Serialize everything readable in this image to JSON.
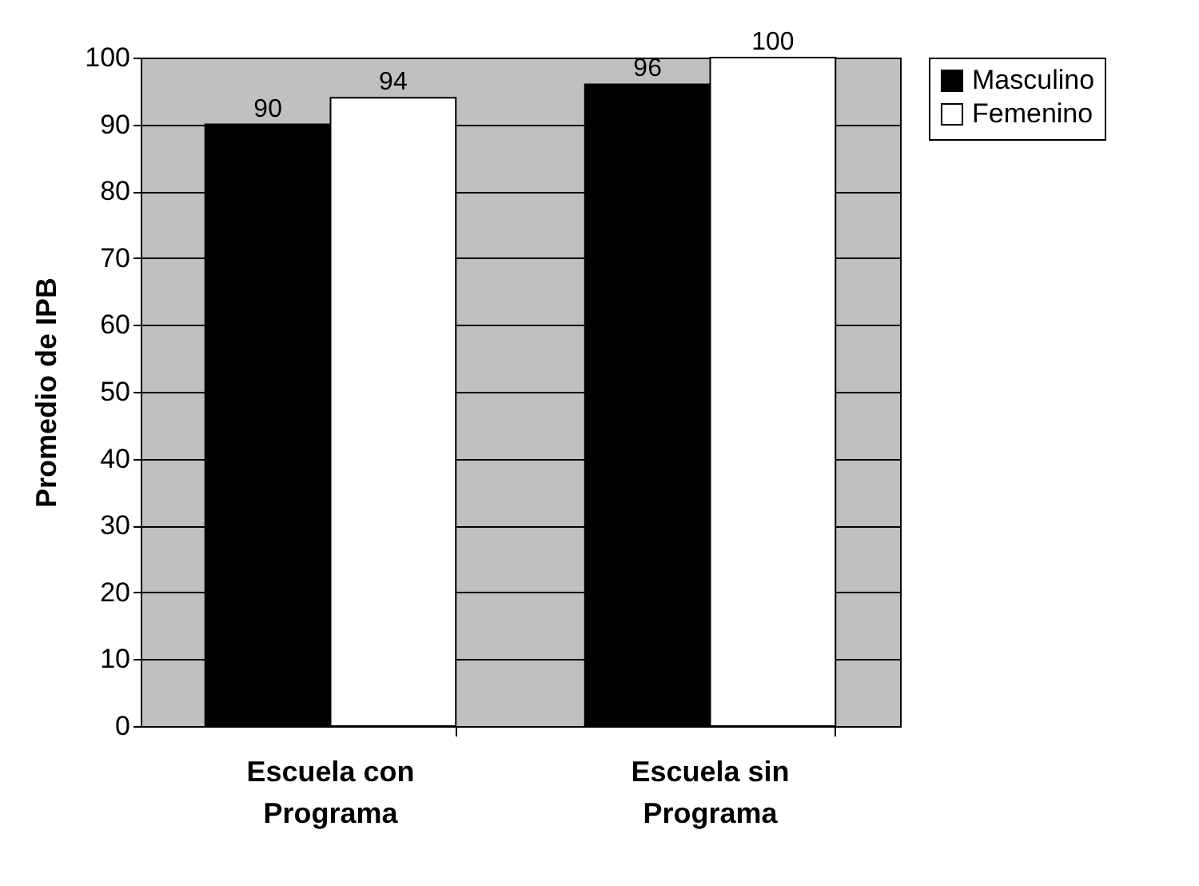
{
  "chart_data": {
    "type": "bar",
    "ylabel": "Promedio de IPB",
    "categories": [
      "Escuela con Programa",
      "Escuela sin Programa"
    ],
    "series": [
      {
        "name": "Masculino",
        "color": "#000000",
        "values": [
          90,
          96
        ]
      },
      {
        "name": "Femenino",
        "color": "#ffffff",
        "values": [
          94,
          100
        ]
      }
    ],
    "ylim": [
      0,
      100
    ],
    "yticks": [
      0,
      10,
      20,
      30,
      40,
      50,
      60,
      70,
      80,
      90,
      100
    ],
    "grid": "y",
    "legend": "right",
    "data_labels": true
  }
}
